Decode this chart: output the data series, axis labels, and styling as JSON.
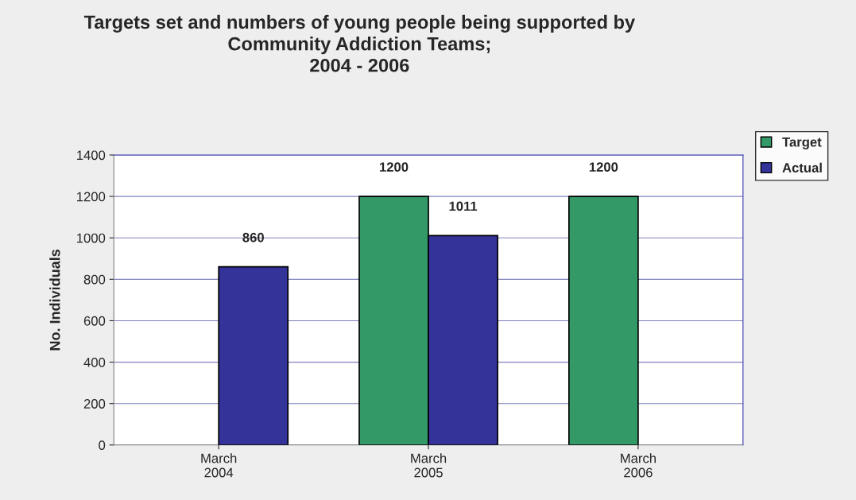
{
  "chart_data": {
    "type": "bar",
    "title": "Targets set and numbers of young people being supported by\nCommunity Addiction Teams;\n2004 - 2006",
    "ylabel": "No. Individuals",
    "categories": [
      "March\n2004",
      "March\n2005",
      "March\n2006"
    ],
    "series": [
      {
        "name": "Target",
        "color": "#339966",
        "values": [
          null,
          1200,
          1200
        ]
      },
      {
        "name": "Actual",
        "color": "#333399",
        "values": [
          860,
          1011,
          null
        ]
      }
    ],
    "ylim": [
      0,
      1400
    ],
    "yticks": [
      0,
      200,
      400,
      600,
      800,
      1000,
      1200,
      1400
    ],
    "grid": "y",
    "legend": "top right",
    "data_labels": true
  }
}
